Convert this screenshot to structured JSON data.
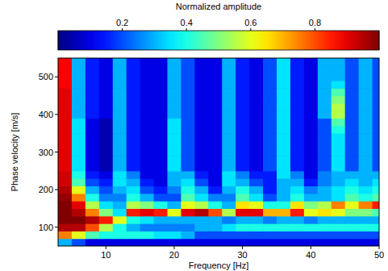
{
  "chart_data": {
    "type": "heatmap",
    "xlabel": "Frequency [Hz]",
    "ylabel": "Phase velocity [m/s]",
    "colorbar_label": "Normalized amplitude",
    "xlim": [
      3,
      50
    ],
    "xticks": [
      10,
      20,
      30,
      40,
      50
    ],
    "ylim": [
      50,
      550
    ],
    "yticks": [
      100,
      200,
      300,
      400,
      500
    ],
    "clim": [
      0,
      1
    ],
    "cticks": [
      0.2,
      0.4,
      0.6,
      0.8
    ],
    "x": [
      4,
      6,
      8,
      10,
      12,
      14,
      16,
      18,
      20,
      22,
      24,
      26,
      28,
      30,
      32,
      34,
      36,
      38,
      40,
      42,
      44,
      46,
      48,
      50
    ],
    "y": [
      60,
      80,
      100,
      120,
      140,
      160,
      180,
      200,
      220,
      240,
      260,
      280,
      300,
      320,
      340,
      360,
      380,
      400,
      420,
      440,
      460,
      480,
      500,
      520,
      540
    ],
    "values": [
      [
        0.3,
        0.2,
        0.1,
        0.1,
        0.1,
        0.1,
        0.1,
        0.1,
        0.1,
        0.1,
        0.1,
        0.1,
        0.1,
        0.1,
        0.1,
        0.1,
        0.1,
        0.1,
        0.1,
        0.1,
        0.1,
        0.1,
        0.1,
        0.1
      ],
      [
        0.75,
        0.6,
        0.45,
        0.4,
        0.4,
        0.4,
        0.4,
        0.35,
        0.35,
        0.3,
        0.2,
        0.2,
        0.2,
        0.2,
        0.2,
        0.2,
        0.2,
        0.2,
        0.2,
        0.2,
        0.2,
        0.2,
        0.2,
        0.2
      ],
      [
        0.95,
        0.95,
        0.8,
        0.55,
        0.4,
        0.3,
        0.25,
        0.25,
        0.25,
        0.25,
        0.3,
        0.3,
        0.35,
        0.4,
        0.4,
        0.4,
        0.4,
        0.4,
        0.4,
        0.4,
        0.4,
        0.4,
        0.4,
        0.4
      ],
      [
        1.0,
        1.0,
        0.95,
        0.85,
        0.6,
        0.4,
        0.35,
        0.3,
        0.3,
        0.3,
        0.3,
        0.3,
        0.25,
        0.3,
        0.3,
        0.25,
        0.3,
        0.3,
        0.25,
        0.3,
        0.3,
        0.3,
        0.3,
        0.3
      ],
      [
        1.0,
        0.95,
        0.75,
        0.5,
        0.35,
        0.85,
        0.9,
        0.85,
        0.6,
        0.9,
        0.95,
        0.8,
        0.55,
        0.9,
        0.9,
        0.7,
        0.7,
        0.85,
        0.6,
        0.65,
        0.6,
        0.5,
        0.5,
        0.45
      ],
      [
        1.0,
        0.9,
        0.55,
        0.35,
        0.3,
        0.55,
        0.5,
        0.4,
        0.3,
        0.6,
        0.55,
        0.4,
        0.3,
        0.65,
        0.6,
        0.4,
        0.4,
        0.65,
        0.5,
        0.55,
        0.75,
        0.6,
        0.75,
        0.85
      ],
      [
        0.98,
        0.75,
        0.4,
        0.25,
        0.25,
        0.4,
        0.3,
        0.2,
        0.2,
        0.45,
        0.35,
        0.25,
        0.25,
        0.45,
        0.35,
        0.2,
        0.3,
        0.4,
        0.3,
        0.3,
        0.35,
        0.45,
        0.4,
        0.45
      ],
      [
        0.95,
        0.6,
        0.3,
        0.2,
        0.3,
        0.35,
        0.2,
        0.15,
        0.25,
        0.4,
        0.3,
        0.15,
        0.3,
        0.4,
        0.3,
        0.15,
        0.3,
        0.35,
        0.25,
        0.3,
        0.35,
        0.4,
        0.35,
        0.4
      ],
      [
        0.92,
        0.45,
        0.2,
        0.15,
        0.35,
        0.3,
        0.15,
        0.1,
        0.3,
        0.35,
        0.2,
        0.1,
        0.35,
        0.3,
        0.2,
        0.15,
        0.3,
        0.3,
        0.15,
        0.25,
        0.3,
        0.35,
        0.3,
        0.35
      ],
      [
        0.92,
        0.4,
        0.15,
        0.1,
        0.35,
        0.25,
        0.1,
        0.1,
        0.3,
        0.3,
        0.15,
        0.1,
        0.35,
        0.25,
        0.15,
        0.15,
        0.35,
        0.25,
        0.1,
        0.25,
        0.3,
        0.3,
        0.3,
        0.3
      ],
      [
        0.9,
        0.35,
        0.1,
        0.05,
        0.3,
        0.15,
        0.1,
        0.1,
        0.35,
        0.2,
        0.1,
        0.1,
        0.3,
        0.15,
        0.1,
        0.2,
        0.35,
        0.15,
        0.1,
        0.2,
        0.35,
        0.2,
        0.3,
        0.2
      ],
      [
        0.9,
        0.35,
        0.1,
        0.05,
        0.3,
        0.15,
        0.1,
        0.1,
        0.35,
        0.2,
        0.1,
        0.1,
        0.3,
        0.15,
        0.1,
        0.2,
        0.35,
        0.15,
        0.1,
        0.2,
        0.35,
        0.2,
        0.3,
        0.2
      ],
      [
        0.9,
        0.35,
        0.1,
        0.05,
        0.3,
        0.15,
        0.1,
        0.1,
        0.35,
        0.2,
        0.1,
        0.1,
        0.3,
        0.15,
        0.1,
        0.2,
        0.35,
        0.15,
        0.1,
        0.2,
        0.35,
        0.2,
        0.3,
        0.2
      ],
      [
        0.9,
        0.35,
        0.1,
        0.05,
        0.3,
        0.15,
        0.1,
        0.1,
        0.35,
        0.2,
        0.1,
        0.1,
        0.3,
        0.15,
        0.1,
        0.2,
        0.35,
        0.15,
        0.1,
        0.2,
        0.35,
        0.2,
        0.3,
        0.2
      ],
      [
        0.9,
        0.35,
        0.1,
        0.05,
        0.3,
        0.15,
        0.1,
        0.1,
        0.35,
        0.2,
        0.1,
        0.1,
        0.3,
        0.15,
        0.1,
        0.2,
        0.35,
        0.15,
        0.1,
        0.2,
        0.35,
        0.2,
        0.3,
        0.2
      ],
      [
        0.9,
        0.35,
        0.1,
        0.05,
        0.3,
        0.15,
        0.1,
        0.1,
        0.35,
        0.2,
        0.1,
        0.1,
        0.3,
        0.15,
        0.1,
        0.2,
        0.35,
        0.15,
        0.1,
        0.2,
        0.4,
        0.2,
        0.3,
        0.2
      ],
      [
        0.9,
        0.35,
        0.1,
        0.05,
        0.3,
        0.15,
        0.1,
        0.1,
        0.35,
        0.2,
        0.1,
        0.1,
        0.3,
        0.15,
        0.1,
        0.2,
        0.35,
        0.15,
        0.1,
        0.2,
        0.45,
        0.2,
        0.3,
        0.2
      ],
      [
        0.9,
        0.3,
        0.15,
        0.1,
        0.3,
        0.15,
        0.1,
        0.1,
        0.3,
        0.2,
        0.1,
        0.1,
        0.3,
        0.15,
        0.1,
        0.2,
        0.35,
        0.15,
        0.1,
        0.3,
        0.55,
        0.2,
        0.3,
        0.2
      ],
      [
        0.9,
        0.3,
        0.15,
        0.1,
        0.3,
        0.15,
        0.1,
        0.1,
        0.3,
        0.2,
        0.1,
        0.1,
        0.3,
        0.15,
        0.1,
        0.2,
        0.35,
        0.15,
        0.1,
        0.3,
        0.55,
        0.2,
        0.3,
        0.2
      ],
      [
        0.9,
        0.3,
        0.15,
        0.1,
        0.3,
        0.15,
        0.1,
        0.1,
        0.3,
        0.2,
        0.1,
        0.1,
        0.3,
        0.15,
        0.1,
        0.2,
        0.35,
        0.15,
        0.1,
        0.3,
        0.5,
        0.2,
        0.3,
        0.2
      ],
      [
        0.9,
        0.3,
        0.15,
        0.1,
        0.3,
        0.15,
        0.1,
        0.1,
        0.3,
        0.2,
        0.1,
        0.1,
        0.3,
        0.15,
        0.1,
        0.2,
        0.35,
        0.15,
        0.1,
        0.3,
        0.45,
        0.2,
        0.3,
        0.2
      ],
      [
        0.88,
        0.3,
        0.15,
        0.1,
        0.3,
        0.15,
        0.1,
        0.1,
        0.3,
        0.2,
        0.1,
        0.1,
        0.3,
        0.15,
        0.1,
        0.2,
        0.35,
        0.15,
        0.1,
        0.3,
        0.35,
        0.2,
        0.3,
        0.2
      ],
      [
        0.88,
        0.3,
        0.15,
        0.1,
        0.3,
        0.15,
        0.1,
        0.1,
        0.3,
        0.2,
        0.1,
        0.1,
        0.3,
        0.15,
        0.1,
        0.2,
        0.35,
        0.15,
        0.1,
        0.3,
        0.3,
        0.2,
        0.3,
        0.2
      ],
      [
        0.88,
        0.3,
        0.15,
        0.1,
        0.3,
        0.15,
        0.1,
        0.1,
        0.3,
        0.2,
        0.1,
        0.1,
        0.3,
        0.15,
        0.1,
        0.2,
        0.35,
        0.15,
        0.1,
        0.3,
        0.3,
        0.2,
        0.3,
        0.2
      ],
      [
        0.88,
        0.3,
        0.15,
        0.1,
        0.3,
        0.15,
        0.1,
        0.1,
        0.3,
        0.2,
        0.1,
        0.1,
        0.3,
        0.15,
        0.1,
        0.2,
        0.35,
        0.15,
        0.1,
        0.3,
        0.3,
        0.2,
        0.3,
        0.2
      ]
    ]
  }
}
